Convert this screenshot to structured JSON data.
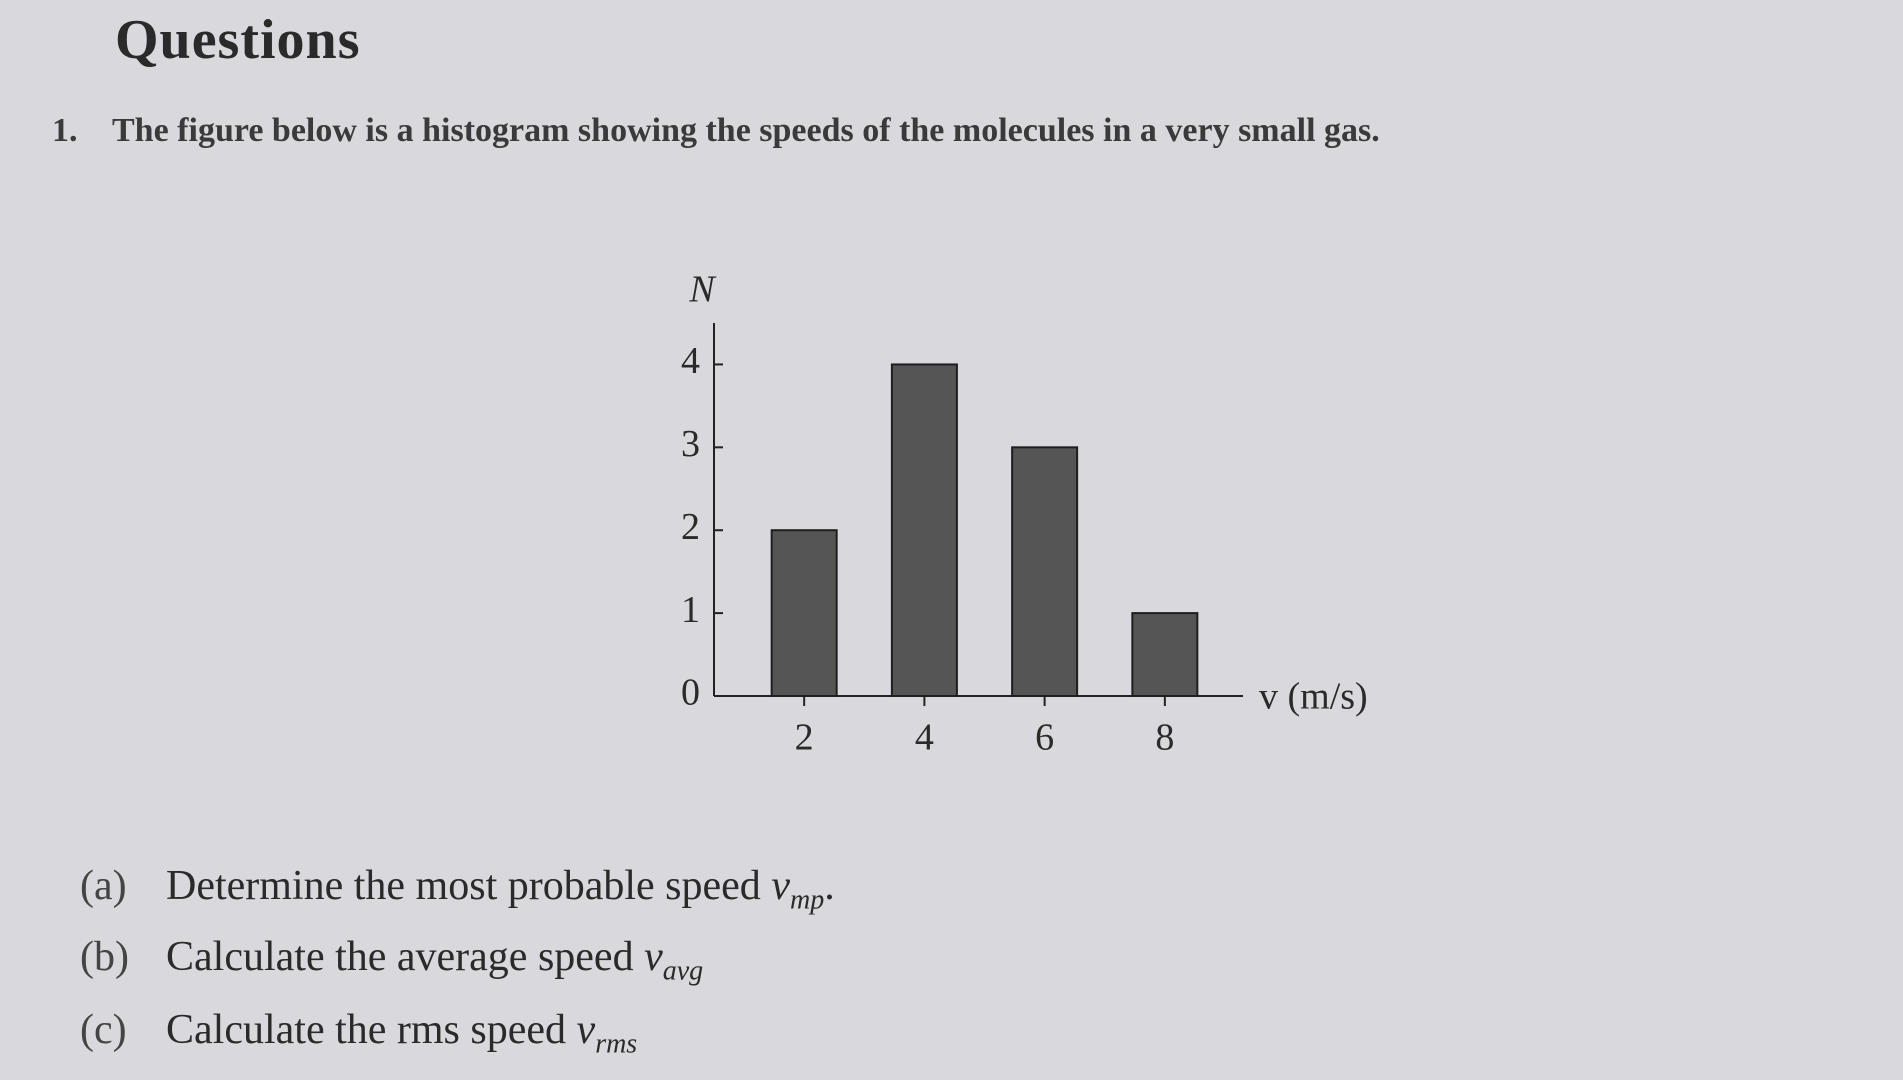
{
  "header": {
    "title": "Questions"
  },
  "question": {
    "number": "1.",
    "text": "The figure below is a histogram showing the speeds of the molecules in a very small gas."
  },
  "chart_data": {
    "type": "bar",
    "x": [
      2,
      4,
      6,
      8
    ],
    "values": [
      2,
      4,
      3,
      1
    ],
    "color": "#555555",
    "xlim": [
      0.5,
      9.3
    ],
    "xticks": [
      2,
      4,
      6,
      8
    ],
    "ylim": [
      0,
      4.5
    ],
    "yticks": [
      0,
      1,
      2,
      3,
      4
    ],
    "y_label": "N",
    "x_label": "v (m/s)"
  },
  "parts": [
    {
      "label": "(a)",
      "text": "Determine the most probable speed",
      "symbol": "v",
      "subscript": "mp",
      "end": "."
    },
    {
      "label": "(b)",
      "text": "Calculate the average speed",
      "symbol": "v",
      "subscript": "avg"
    },
    {
      "label": "(c)",
      "text": "Calculate the rms speed",
      "symbol": "v",
      "subscript": "rms"
    }
  ]
}
